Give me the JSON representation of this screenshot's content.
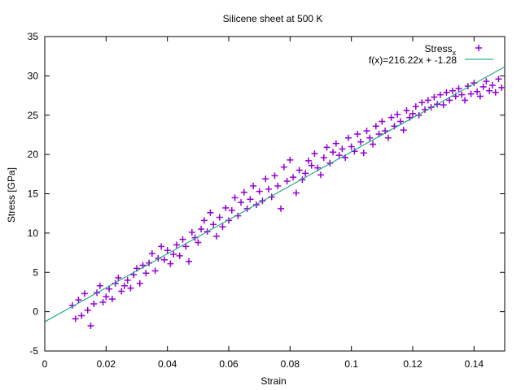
{
  "chart_data": {
    "type": "scatter",
    "title": "Silicene sheet at 500 K",
    "xlabel": "Strain",
    "ylabel": "Stress [GPa]",
    "xlim": [
      0,
      0.15
    ],
    "ylim": [
      -5,
      35
    ],
    "x_ticks": [
      0,
      0.02,
      0.04,
      0.06,
      0.08,
      0.1,
      0.12,
      0.14
    ],
    "x_tick_labels": [
      "0",
      "0.02",
      "0.04",
      "0.06",
      "0.08",
      "0.1",
      "0.12",
      "0.14"
    ],
    "y_ticks": [
      -5,
      0,
      5,
      10,
      15,
      20,
      25,
      30,
      35
    ],
    "y_tick_labels": [
      "-5",
      "0",
      "5",
      "10",
      "15",
      "20",
      "25",
      "30",
      "35"
    ],
    "grid": false,
    "legend_position": "top-right",
    "legend": {
      "scatter_label_main": "Stress",
      "scatter_label_sub": "x",
      "fit_label": "f(x)=216.22x + -1.28"
    },
    "series": [
      {
        "name": "Stress_x",
        "marker": "plus",
        "color": "#9400d3",
        "points": [
          [
            0.009,
            0.8
          ],
          [
            0.01,
            -0.9
          ],
          [
            0.011,
            1.5
          ],
          [
            0.012,
            -0.5
          ],
          [
            0.013,
            2.3
          ],
          [
            0.014,
            0.2
          ],
          [
            0.015,
            -1.8
          ],
          [
            0.016,
            1.0
          ],
          [
            0.017,
            2.4
          ],
          [
            0.018,
            3.3
          ],
          [
            0.019,
            1.2
          ],
          [
            0.02,
            1.9
          ],
          [
            0.021,
            2.9
          ],
          [
            0.022,
            1.6
          ],
          [
            0.023,
            3.6
          ],
          [
            0.024,
            4.3
          ],
          [
            0.025,
            2.6
          ],
          [
            0.026,
            3.3
          ],
          [
            0.027,
            4.0
          ],
          [
            0.028,
            3.0
          ],
          [
            0.029,
            4.7
          ],
          [
            0.03,
            5.5
          ],
          [
            0.031,
            3.6
          ],
          [
            0.032,
            5.9
          ],
          [
            0.033,
            4.9
          ],
          [
            0.034,
            6.2
          ],
          [
            0.035,
            7.4
          ],
          [
            0.036,
            5.2
          ],
          [
            0.037,
            6.8
          ],
          [
            0.038,
            8.3
          ],
          [
            0.039,
            6.6
          ],
          [
            0.04,
            7.8
          ],
          [
            0.041,
            6.1
          ],
          [
            0.042,
            7.3
          ],
          [
            0.043,
            8.5
          ],
          [
            0.044,
            7.1
          ],
          [
            0.045,
            9.2
          ],
          [
            0.046,
            8.3
          ],
          [
            0.047,
            6.4
          ],
          [
            0.048,
            10.1
          ],
          [
            0.049,
            9.4
          ],
          [
            0.05,
            8.8
          ],
          [
            0.051,
            10.5
          ],
          [
            0.052,
            11.6
          ],
          [
            0.053,
            10.2
          ],
          [
            0.054,
            12.6
          ],
          [
            0.055,
            11.1
          ],
          [
            0.056,
            9.6
          ],
          [
            0.057,
            12.0
          ],
          [
            0.058,
            10.8
          ],
          [
            0.059,
            13.2
          ],
          [
            0.06,
            11.6
          ],
          [
            0.061,
            12.9
          ],
          [
            0.062,
            14.5
          ],
          [
            0.063,
            12.2
          ],
          [
            0.064,
            13.9
          ],
          [
            0.065,
            15.2
          ],
          [
            0.066,
            13.1
          ],
          [
            0.067,
            14.3
          ],
          [
            0.068,
            16.0
          ],
          [
            0.069,
            13.6
          ],
          [
            0.07,
            15.3
          ],
          [
            0.071,
            14.1
          ],
          [
            0.072,
            16.9
          ],
          [
            0.073,
            15.6
          ],
          [
            0.074,
            14.6
          ],
          [
            0.075,
            17.3
          ],
          [
            0.076,
            16.0
          ],
          [
            0.077,
            13.1
          ],
          [
            0.078,
            18.4
          ],
          [
            0.079,
            16.6
          ],
          [
            0.08,
            19.3
          ],
          [
            0.081,
            17.1
          ],
          [
            0.082,
            15.1
          ],
          [
            0.083,
            18.0
          ],
          [
            0.084,
            16.8
          ],
          [
            0.085,
            17.6
          ],
          [
            0.086,
            19.2
          ],
          [
            0.087,
            18.6
          ],
          [
            0.088,
            20.1
          ],
          [
            0.089,
            18.3
          ],
          [
            0.09,
            17.4
          ],
          [
            0.091,
            19.6
          ],
          [
            0.092,
            20.9
          ],
          [
            0.093,
            18.9
          ],
          [
            0.094,
            20.3
          ],
          [
            0.095,
            21.4
          ],
          [
            0.096,
            19.9
          ],
          [
            0.097,
            20.7
          ],
          [
            0.098,
            19.6
          ],
          [
            0.099,
            22.1
          ],
          [
            0.1,
            21.0
          ],
          [
            0.101,
            20.4
          ],
          [
            0.102,
            22.6
          ],
          [
            0.103,
            21.6
          ],
          [
            0.104,
            20.2
          ],
          [
            0.105,
            23.0
          ],
          [
            0.106,
            22.1
          ],
          [
            0.107,
            21.3
          ],
          [
            0.108,
            23.6
          ],
          [
            0.109,
            22.6
          ],
          [
            0.11,
            24.2
          ],
          [
            0.111,
            23.0
          ],
          [
            0.112,
            22.1
          ],
          [
            0.113,
            24.7
          ],
          [
            0.114,
            23.6
          ],
          [
            0.115,
            25.1
          ],
          [
            0.116,
            24.2
          ],
          [
            0.117,
            23.1
          ],
          [
            0.118,
            25.6
          ],
          [
            0.119,
            24.7
          ],
          [
            0.12,
            25.2
          ],
          [
            0.121,
            26.1
          ],
          [
            0.122,
            25.0
          ],
          [
            0.123,
            26.6
          ],
          [
            0.124,
            25.7
          ],
          [
            0.125,
            26.9
          ],
          [
            0.126,
            26.0
          ],
          [
            0.127,
            27.3
          ],
          [
            0.128,
            26.4
          ],
          [
            0.129,
            27.6
          ],
          [
            0.13,
            26.3
          ],
          [
            0.131,
            27.9
          ],
          [
            0.132,
            26.9
          ],
          [
            0.133,
            28.1
          ],
          [
            0.134,
            27.4
          ],
          [
            0.135,
            28.4
          ],
          [
            0.136,
            27.6
          ],
          [
            0.137,
            26.9
          ],
          [
            0.138,
            28.7
          ],
          [
            0.139,
            27.7
          ],
          [
            0.14,
            29.1
          ],
          [
            0.141,
            28.0
          ],
          [
            0.142,
            27.4
          ],
          [
            0.143,
            28.6
          ],
          [
            0.144,
            29.3
          ],
          [
            0.145,
            28.1
          ],
          [
            0.146,
            28.8
          ],
          [
            0.147,
            27.9
          ],
          [
            0.148,
            29.6
          ],
          [
            0.149,
            28.5
          ]
        ]
      },
      {
        "name": "f(x)=216.22x + -1.28",
        "type": "line",
        "color": "#009e73",
        "slope": 216.22,
        "intercept": -1.28
      }
    ]
  }
}
